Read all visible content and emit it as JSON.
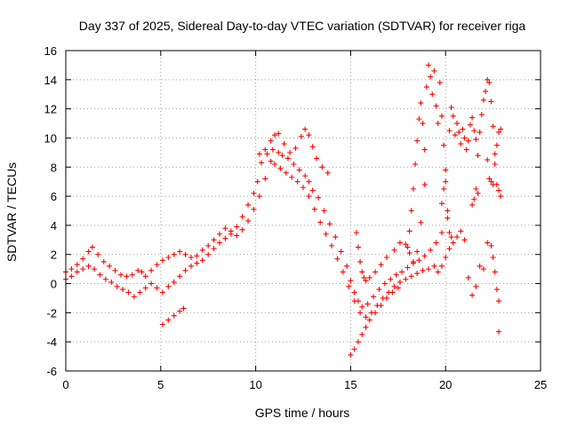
{
  "chart_data": {
    "type": "scatter",
    "title": "Day 337 of 2025, Sidereal Day-to-day VTEC variation (SDTVAR) for receiver riga",
    "xlabel": "GPS time / hours",
    "ylabel": "SDTVAR / TECUs",
    "xlim": [
      0,
      25
    ],
    "ylim": [
      -6,
      16
    ],
    "xticks": [
      0,
      5,
      10,
      15,
      20,
      25
    ],
    "yticks": [
      -6,
      -4,
      -2,
      0,
      2,
      4,
      6,
      8,
      10,
      12,
      14,
      16
    ],
    "grid": true,
    "marker": "plus",
    "color": "#ff0000",
    "series": [
      {
        "x": [
          0.0,
          0.3,
          0.6,
          0.9,
          1.2,
          1.4,
          1.7,
          2.0,
          2.3,
          2.6,
          2.9,
          3.2,
          3.5,
          3.8,
          4.0,
          4.2,
          4.5,
          4.8,
          5.1,
          5.4,
          5.7,
          6.0,
          6.3,
          6.6,
          6.9,
          7.2,
          7.5,
          7.8,
          8.1,
          8.4,
          8.7,
          9.0,
          9.3,
          9.6,
          9.9,
          10.1,
          10.3,
          10.6,
          10.9,
          11.2,
          11.4,
          11.7,
          12.0,
          12.3,
          12.6,
          12.8,
          13.0,
          13.3,
          13.6,
          13.9,
          14.2,
          14.5,
          14.8,
          15.0,
          15.2,
          15.4,
          15.6,
          15.9,
          16.2,
          16.5,
          16.8,
          17.1,
          17.4,
          17.7,
          18.0,
          18.3,
          18.6,
          18.9,
          19.2,
          19.5,
          19.8
        ],
        "y": [
          0.8,
          1.0,
          1.3,
          1.7,
          2.2,
          2.5,
          2.0,
          1.5,
          1.2,
          0.9,
          0.6,
          0.5,
          0.6,
          0.9,
          0.8,
          0.5,
          0.9,
          1.3,
          1.6,
          1.8,
          2.0,
          2.2,
          2.0,
          1.8,
          1.9,
          2.3,
          2.6,
          3.0,
          3.4,
          3.8,
          3.6,
          3.9,
          4.6,
          5.4,
          6.2,
          7.0,
          8.3,
          8.9,
          9.2,
          9.0,
          8.8,
          8.6,
          8.2,
          7.8,
          7.4,
          7.0,
          6.4,
          5.9,
          5.0,
          4.1,
          3.2,
          2.2,
          1.2,
          0.2,
          -0.6,
          -1.2,
          -1.6,
          -1.4,
          -0.9,
          -0.4,
          0.0,
          0.3,
          0.6,
          0.8,
          1.1,
          1.4,
          1.6,
          1.9,
          2.3,
          2.8,
          3.5
        ]
      },
      {
        "x": [
          0.0,
          0.3,
          0.6,
          0.9,
          1.2,
          1.5,
          1.8,
          2.1,
          2.4,
          2.7,
          3.0,
          3.3,
          3.6,
          3.9,
          4.2,
          4.5,
          4.8,
          5.1,
          5.4,
          5.7,
          6.0,
          6.3,
          6.6,
          6.9,
          7.2,
          7.5,
          7.8,
          8.1,
          8.4,
          8.7,
          9.0,
          9.3,
          9.6,
          9.9,
          10.2,
          10.5,
          10.8,
          11.0,
          11.3,
          11.6,
          11.9,
          12.2,
          12.5,
          12.8,
          13.1,
          13.4,
          13.7,
          14.0,
          14.3,
          14.6,
          14.9,
          15.2,
          15.5,
          15.8,
          16.1,
          16.4,
          16.7,
          17.0,
          17.3,
          17.6,
          17.9,
          18.2,
          18.5,
          18.8,
          19.1,
          19.4
        ],
        "y": [
          0.3,
          0.5,
          0.8,
          1.0,
          1.2,
          1.0,
          0.6,
          0.3,
          0.1,
          -0.2,
          -0.4,
          -0.6,
          -0.9,
          -0.6,
          -0.3,
          0.0,
          -0.3,
          -0.6,
          -0.2,
          0.1,
          0.5,
          0.9,
          1.2,
          1.4,
          1.6,
          2.0,
          2.4,
          2.8,
          3.1,
          3.4,
          3.3,
          3.7,
          4.3,
          5.1,
          6.0,
          7.2,
          8.4,
          8.2,
          7.9,
          7.6,
          7.3,
          7.0,
          6.6,
          6.0,
          5.1,
          4.2,
          3.4,
          2.6,
          1.7,
          0.8,
          -0.2,
          -1.2,
          -2.0,
          -2.3,
          -2.0,
          -1.5,
          -1.0,
          -0.6,
          -0.2,
          0.1,
          0.3,
          0.5,
          0.7,
          0.9,
          1.0,
          1.2
        ]
      },
      {
        "x": [
          5.1,
          5.4,
          5.7,
          6.0,
          6.2
        ],
        "y": [
          -2.8,
          -2.5,
          -2.2,
          -1.9,
          -1.7
        ]
      },
      {
        "x": [
          10.2,
          10.5,
          10.8,
          11.0,
          11.2,
          11.5,
          11.8,
          12.1,
          12.4,
          12.6,
          12.8,
          13.0,
          13.2,
          13.5,
          13.8
        ],
        "y": [
          8.9,
          9.2,
          9.8,
          10.2,
          10.3,
          9.6,
          9.0,
          9.3,
          10.1,
          10.6,
          10.2,
          9.4,
          8.6,
          8.0,
          7.6
        ]
      },
      {
        "x": [
          15.0,
          15.2,
          15.4,
          15.6,
          15.8,
          16.0,
          16.3,
          16.6,
          16.9,
          17.2,
          17.5
        ],
        "y": [
          -4.9,
          -4.5,
          -4.0,
          -3.5,
          -3.0,
          -2.5,
          -2.0,
          -1.5,
          -1.0,
          -0.6,
          -0.3
        ]
      },
      {
        "x": [
          15.3,
          15.4,
          15.5,
          15.6,
          15.7,
          15.8,
          16.0,
          16.3,
          16.6,
          16.9,
          17.3,
          17.6,
          17.9,
          18.1,
          18.3,
          18.5,
          18.7,
          18.9
        ],
        "y": [
          3.5,
          2.5,
          1.5,
          0.8,
          0.4,
          0.2,
          0.4,
          0.8,
          1.3,
          1.8,
          2.3,
          2.8,
          2.7,
          2.1,
          1.5,
          2.2,
          4.2,
          6.8
        ]
      },
      {
        "x": [
          18.0,
          18.1,
          18.2,
          18.3,
          18.4,
          18.5,
          18.6,
          18.7,
          18.8,
          18.9,
          19.0,
          19.1,
          19.2,
          19.3,
          19.4,
          19.5,
          19.6,
          19.7,
          19.8,
          19.9,
          20.0,
          20.1,
          20.2,
          20.3,
          20.4,
          20.5,
          20.6,
          20.7,
          20.8,
          20.9,
          21.0,
          21.1,
          21.2,
          21.3,
          21.4,
          21.5,
          21.6,
          21.7,
          21.8,
          21.9,
          22.0,
          22.1,
          22.2,
          22.3,
          22.4,
          22.5,
          22.6,
          22.7,
          22.8,
          22.9
        ],
        "y": [
          2.5,
          3.6,
          5.0,
          6.5,
          8.2,
          9.8,
          11.3,
          12.4,
          11.0,
          9.2,
          13.5,
          15.0,
          14.2,
          13.0,
          14.6,
          12.2,
          11.0,
          13.8,
          11.5,
          9.5,
          7.0,
          5.0,
          10.5,
          12.1,
          11.5,
          10.2,
          11.0,
          10.4,
          9.6,
          10.6,
          10.0,
          9.2,
          9.8,
          10.9,
          11.4,
          10.5,
          9.9,
          8.8,
          10.4,
          11.6,
          12.6,
          13.2,
          14.0,
          13.8,
          12.5,
          10.8,
          8.2,
          6.8,
          6.4,
          6.0
        ]
      },
      {
        "x": [
          19.6,
          19.8,
          20.0,
          20.2,
          20.4,
          20.6,
          20.8,
          21.0,
          21.2,
          21.4,
          21.6,
          21.8,
          22.0,
          22.2,
          22.4,
          22.5,
          22.6,
          22.7,
          22.8
        ],
        "y": [
          0.8,
          1.2,
          1.8,
          2.4,
          2.8,
          3.2,
          3.6,
          3.0,
          0.4,
          -0.8,
          -0.2,
          1.2,
          1.0,
          2.8,
          2.6,
          1.8,
          0.8,
          -0.4,
          -1.2
        ]
      },
      {
        "x": [
          19.8,
          19.9,
          20.0,
          20.1,
          20.2,
          20.3,
          21.4,
          21.5,
          21.6,
          21.7,
          22.2,
          22.3,
          22.4,
          22.5,
          22.6,
          22.7,
          22.8,
          22.9
        ],
        "y": [
          5.5,
          6.5,
          7.8,
          4.5,
          3.5,
          3.2,
          5.4,
          5.8,
          6.5,
          6.2,
          8.5,
          7.2,
          7.0,
          6.8,
          8.9,
          9.5,
          10.4,
          10.6
        ]
      },
      {
        "x": [
          22.8
        ],
        "y": [
          -3.3
        ]
      }
    ]
  }
}
